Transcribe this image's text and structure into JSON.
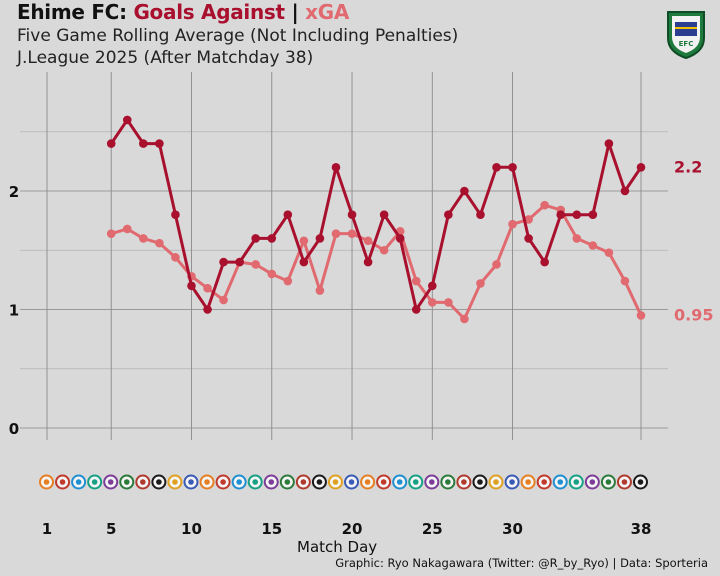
{
  "header": {
    "team": "Ehime FC:",
    "metric_main": "Goals Against",
    "separator": "|",
    "metric_compare": "xGA",
    "subtitle1": "Five Game Rolling Average (Not Including Penalties)",
    "subtitle2": "J.League 2025 (After Matchday 38)"
  },
  "badge": {
    "icon": "ehime-fc-crest-icon",
    "text": "EFC"
  },
  "caption": "Graphic: Ryo Nakagawara (Twitter: @R_by_Ryo) | Data: Sporteria",
  "chart_data": {
    "type": "line",
    "title": "Ehime FC: Goals Against | xGA",
    "xlabel": "Match Day",
    "ylabel": "",
    "x_ticks": [
      1,
      5,
      10,
      15,
      20,
      25,
      30,
      38
    ],
    "xlim": [
      0,
      39
    ],
    "y_ticks": [
      0,
      1,
      2
    ],
    "ylim": [
      -0.05,
      3.0
    ],
    "grid": true,
    "series": [
      {
        "name": "Goals Against",
        "color": "#a8102e",
        "end_label": "2.2",
        "x": [
          5,
          6,
          7,
          8,
          9,
          10,
          11,
          12,
          13,
          14,
          15,
          16,
          17,
          18,
          19,
          20,
          21,
          22,
          23,
          24,
          25,
          26,
          27,
          28,
          29,
          30,
          31,
          32,
          33,
          34,
          35,
          36,
          37,
          38
        ],
        "values": [
          2.4,
          2.6,
          2.4,
          2.4,
          1.8,
          1.2,
          1.0,
          1.4,
          1.4,
          1.6,
          1.6,
          1.8,
          1.4,
          1.6,
          2.2,
          1.8,
          1.4,
          1.8,
          1.6,
          1.0,
          1.2,
          1.8,
          2.0,
          1.8,
          2.2,
          2.2,
          1.6,
          1.4,
          1.8,
          1.8,
          1.8,
          2.4,
          2.0,
          2.2
        ]
      },
      {
        "name": "xGA",
        "color": "#e06a6f",
        "end_label": "0.95",
        "x": [
          5,
          6,
          7,
          8,
          9,
          10,
          11,
          12,
          13,
          14,
          15,
          16,
          17,
          18,
          19,
          20,
          21,
          22,
          23,
          24,
          25,
          26,
          27,
          28,
          29,
          30,
          31,
          32,
          33,
          34,
          35,
          36,
          37,
          38
        ],
        "values": [
          1.64,
          1.68,
          1.6,
          1.56,
          1.44,
          1.28,
          1.18,
          1.08,
          1.4,
          1.38,
          1.3,
          1.24,
          1.58,
          1.16,
          1.64,
          1.64,
          1.58,
          1.5,
          1.66,
          1.24,
          1.06,
          1.06,
          0.92,
          1.22,
          1.38,
          1.72,
          1.76,
          1.88,
          1.84,
          1.6,
          1.54,
          1.48,
          1.24,
          0.95
        ]
      }
    ],
    "opponent_logo_row": "opponent club crests for each match day"
  }
}
